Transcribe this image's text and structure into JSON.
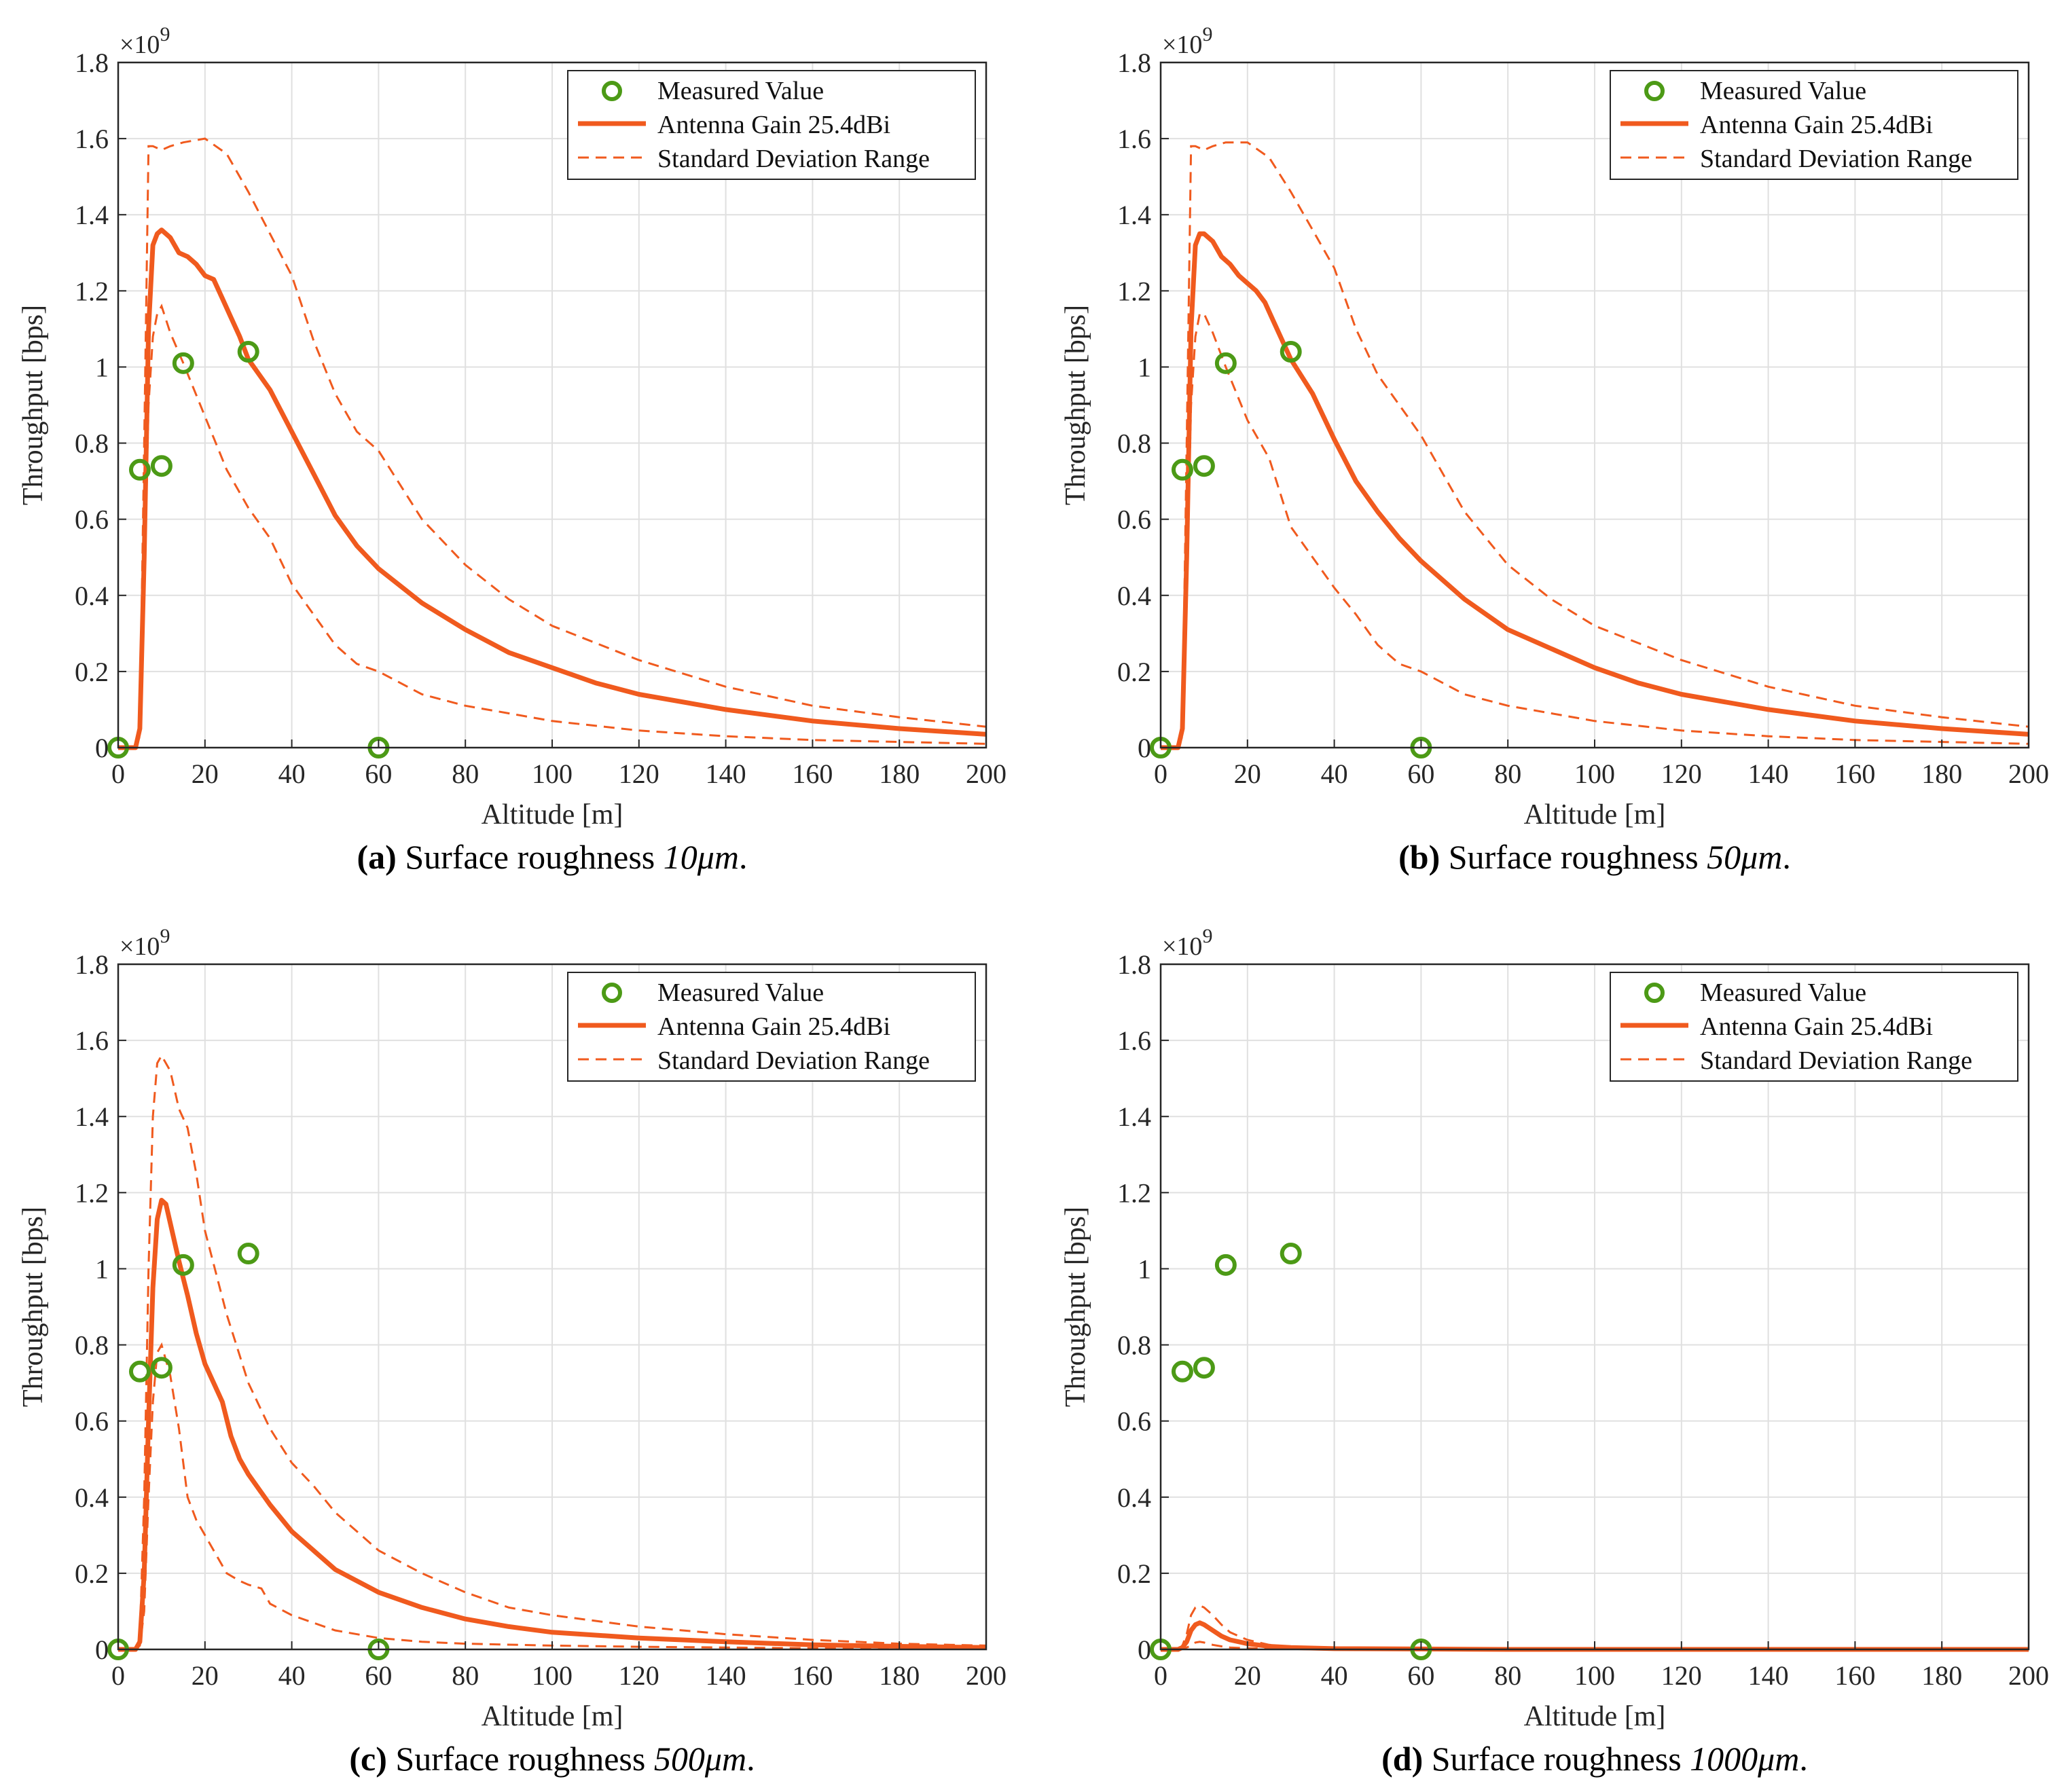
{
  "colors": {
    "curve": "#f05a1e",
    "marker": "#4c9a16",
    "grid": "#e0e0e0",
    "axis": "#262626"
  },
  "chart_data": [
    {
      "type": "line",
      "caption_tag": "(a)",
      "caption_text": "Surface roughness",
      "caption_math": "10μm",
      "caption_end": ".",
      "xlabel": "Altitude [m]",
      "ylabel": "Throughput [bps]",
      "exponent": "×10",
      "exponent_power": "9",
      "xlim": [
        0,
        200
      ],
      "ylim": [
        0,
        1.8
      ],
      "xticks": [
        0,
        20,
        40,
        60,
        80,
        100,
        120,
        140,
        160,
        180,
        200
      ],
      "yticks": [
        0,
        0.2,
        0.4,
        0.6,
        0.8,
        1,
        1.2,
        1.4,
        1.6,
        1.8
      ],
      "ytick_labels": [
        "0",
        "0.2",
        "0.4",
        "0.6",
        "0.8",
        "1",
        "1.2",
        "1.4",
        "1.6",
        "1.8"
      ],
      "grid": true,
      "legend_position": "top-right",
      "legend": [
        "Measured Value",
        "Antenna Gain 25.4dBi",
        "Standard Deviation Range"
      ],
      "measured": {
        "name": "Measured Value",
        "x": [
          0,
          5,
          10,
          15,
          30,
          60
        ],
        "y": [
          0,
          0.73,
          0.74,
          1.01,
          1.04,
          0
        ]
      },
      "mean": {
        "name": "Antenna Gain 25.4dBi",
        "x": [
          0,
          4,
          5,
          6,
          7,
          8,
          9,
          10,
          12,
          14,
          16,
          18,
          20,
          22,
          24,
          26,
          28,
          30,
          35,
          40,
          45,
          50,
          55,
          60,
          70,
          80,
          90,
          100,
          110,
          120,
          140,
          160,
          180,
          200
        ],
        "y": [
          0,
          0,
          0.05,
          0.5,
          1.1,
          1.32,
          1.35,
          1.36,
          1.34,
          1.3,
          1.29,
          1.27,
          1.24,
          1.23,
          1.18,
          1.13,
          1.08,
          1.02,
          0.94,
          0.83,
          0.72,
          0.61,
          0.53,
          0.47,
          0.38,
          0.31,
          0.25,
          0.21,
          0.17,
          0.14,
          0.1,
          0.07,
          0.05,
          0.035
        ]
      },
      "upper": {
        "name": "Standard Deviation Range",
        "x": [
          0,
          4,
          5,
          6,
          7,
          8,
          10,
          12,
          15,
          20,
          25,
          30,
          35,
          40,
          45,
          50,
          55,
          60,
          70,
          80,
          90,
          100,
          120,
          140,
          160,
          180,
          200
        ],
        "y": [
          0,
          0,
          0.05,
          0.8,
          1.58,
          1.58,
          1.57,
          1.58,
          1.59,
          1.6,
          1.56,
          1.46,
          1.35,
          1.24,
          1.07,
          0.93,
          0.83,
          0.78,
          0.6,
          0.48,
          0.39,
          0.32,
          0.23,
          0.16,
          0.11,
          0.08,
          0.055
        ]
      },
      "lower": {
        "name": "Standard Deviation Range",
        "x": [
          0,
          4,
          5,
          6,
          7,
          8,
          9,
          10,
          12,
          15,
          20,
          25,
          30,
          35,
          40,
          45,
          50,
          55,
          60,
          70,
          80,
          90,
          100,
          120,
          140,
          160,
          180,
          200
        ],
        "y": [
          0,
          0,
          0.03,
          0.4,
          0.9,
          1.08,
          1.14,
          1.16,
          1.09,
          1.01,
          0.87,
          0.73,
          0.63,
          0.55,
          0.43,
          0.35,
          0.27,
          0.22,
          0.2,
          0.14,
          0.11,
          0.09,
          0.07,
          0.045,
          0.03,
          0.02,
          0.015,
          0.01
        ]
      }
    },
    {
      "type": "line",
      "caption_tag": "(b)",
      "caption_text": "Surface roughness",
      "caption_math": "50μm",
      "caption_end": ".",
      "xlabel": "Altitude [m]",
      "ylabel": "Throughput [bps]",
      "exponent": "×10",
      "exponent_power": "9",
      "xlim": [
        0,
        200
      ],
      "ylim": [
        0,
        1.8
      ],
      "xticks": [
        0,
        20,
        40,
        60,
        80,
        100,
        120,
        140,
        160,
        180,
        200
      ],
      "yticks": [
        0,
        0.2,
        0.4,
        0.6,
        0.8,
        1,
        1.2,
        1.4,
        1.6,
        1.8
      ],
      "ytick_labels": [
        "0",
        "0.2",
        "0.4",
        "0.6",
        "0.8",
        "1",
        "1.2",
        "1.4",
        "1.6",
        "1.8"
      ],
      "grid": true,
      "legend_position": "top-right",
      "legend": [
        "Measured Value",
        "Antenna Gain 25.4dBi",
        "Standard Deviation Range"
      ],
      "measured": {
        "name": "Measured Value",
        "x": [
          0,
          5,
          10,
          15,
          30,
          60
        ],
        "y": [
          0,
          0.73,
          0.74,
          1.01,
          1.04,
          0
        ]
      },
      "mean": {
        "name": "Antenna Gain 25.4dBi",
        "x": [
          0,
          4,
          5,
          6,
          7,
          8,
          9,
          10,
          12,
          14,
          16,
          18,
          20,
          22,
          24,
          26,
          28,
          30,
          35,
          40,
          45,
          50,
          55,
          60,
          70,
          80,
          90,
          100,
          110,
          120,
          140,
          160,
          180,
          200
        ],
        "y": [
          0,
          0,
          0.05,
          0.5,
          1.1,
          1.32,
          1.35,
          1.35,
          1.33,
          1.29,
          1.27,
          1.24,
          1.22,
          1.2,
          1.17,
          1.12,
          1.07,
          1.02,
          0.93,
          0.81,
          0.7,
          0.62,
          0.55,
          0.49,
          0.39,
          0.31,
          0.26,
          0.21,
          0.17,
          0.14,
          0.1,
          0.07,
          0.05,
          0.035
        ]
      },
      "upper": {
        "name": "Standard Deviation Range",
        "x": [
          0,
          4,
          5,
          6,
          7,
          8,
          10,
          12,
          15,
          20,
          25,
          30,
          35,
          40,
          45,
          50,
          55,
          60,
          70,
          80,
          90,
          100,
          120,
          140,
          160,
          180,
          200
        ],
        "y": [
          0,
          0,
          0.05,
          0.8,
          1.58,
          1.58,
          1.57,
          1.58,
          1.59,
          1.59,
          1.55,
          1.46,
          1.36,
          1.26,
          1.1,
          0.98,
          0.9,
          0.82,
          0.62,
          0.48,
          0.39,
          0.32,
          0.23,
          0.16,
          0.11,
          0.08,
          0.055
        ]
      },
      "lower": {
        "name": "Standard Deviation Range",
        "x": [
          0,
          4,
          5,
          6,
          7,
          8,
          9,
          10,
          12,
          15,
          20,
          25,
          30,
          35,
          40,
          45,
          50,
          55,
          60,
          70,
          80,
          90,
          100,
          120,
          140,
          160,
          180,
          200
        ],
        "y": [
          0,
          0,
          0.03,
          0.4,
          0.9,
          1.08,
          1.14,
          1.14,
          1.09,
          1.0,
          0.86,
          0.76,
          0.58,
          0.5,
          0.42,
          0.35,
          0.27,
          0.22,
          0.2,
          0.14,
          0.11,
          0.09,
          0.07,
          0.045,
          0.03,
          0.02,
          0.015,
          0.01
        ]
      }
    },
    {
      "type": "line",
      "caption_tag": "(c)",
      "caption_text": "Surface roughness",
      "caption_math": "500μm",
      "caption_end": ".",
      "xlabel": "Altitude [m]",
      "ylabel": "Throughput [bps]",
      "exponent": "×10",
      "exponent_power": "9",
      "xlim": [
        0,
        200
      ],
      "ylim": [
        0,
        1.8
      ],
      "xticks": [
        0,
        20,
        40,
        60,
        80,
        100,
        120,
        140,
        160,
        180,
        200
      ],
      "yticks": [
        0,
        0.2,
        0.4,
        0.6,
        0.8,
        1,
        1.2,
        1.4,
        1.6,
        1.8
      ],
      "ytick_labels": [
        "0",
        "0.2",
        "0.4",
        "0.6",
        "0.8",
        "1",
        "1.2",
        "1.4",
        "1.6",
        "1.8"
      ],
      "grid": true,
      "legend_position": "top-right",
      "legend": [
        "Measured Value",
        "Antenna Gain 25.4dBi",
        "Standard Deviation Range"
      ],
      "measured": {
        "name": "Measured Value",
        "x": [
          0,
          5,
          10,
          15,
          30,
          60
        ],
        "y": [
          0,
          0.73,
          0.74,
          1.01,
          1.04,
          0
        ]
      },
      "mean": {
        "name": "Antenna Gain 25.4dBi",
        "x": [
          0,
          4,
          5,
          6,
          7,
          8,
          9,
          10,
          11,
          12,
          14,
          16,
          18,
          20,
          22,
          24,
          26,
          28,
          30,
          35,
          40,
          45,
          50,
          60,
          70,
          80,
          90,
          100,
          120,
          140,
          160,
          180,
          200
        ],
        "y": [
          0,
          0,
          0.02,
          0.2,
          0.6,
          0.95,
          1.13,
          1.18,
          1.17,
          1.12,
          1.02,
          0.93,
          0.83,
          0.75,
          0.7,
          0.65,
          0.56,
          0.5,
          0.46,
          0.38,
          0.31,
          0.26,
          0.21,
          0.15,
          0.11,
          0.08,
          0.06,
          0.045,
          0.03,
          0.02,
          0.012,
          0.008,
          0.005
        ]
      },
      "upper": {
        "name": "Standard Deviation Range",
        "x": [
          0,
          4,
          5,
          6,
          7,
          8,
          9,
          10,
          12,
          14,
          16,
          18,
          20,
          25,
          30,
          35,
          40,
          45,
          50,
          60,
          70,
          80,
          90,
          100,
          120,
          140,
          160,
          180,
          200
        ],
        "y": [
          0,
          0,
          0.03,
          0.4,
          1.0,
          1.4,
          1.54,
          1.56,
          1.52,
          1.42,
          1.37,
          1.25,
          1.1,
          0.88,
          0.7,
          0.58,
          0.49,
          0.43,
          0.36,
          0.26,
          0.2,
          0.15,
          0.11,
          0.09,
          0.06,
          0.04,
          0.025,
          0.015,
          0.01
        ]
      },
      "lower": {
        "name": "Standard Deviation Range",
        "x": [
          0,
          4,
          5,
          6,
          7,
          8,
          9,
          10,
          12,
          14,
          16,
          18,
          20,
          22,
          25,
          28,
          30,
          33,
          35,
          40,
          50,
          60,
          70,
          80,
          100,
          120,
          140,
          160,
          200
        ],
        "y": [
          0,
          0,
          0.01,
          0.1,
          0.4,
          0.65,
          0.78,
          0.8,
          0.72,
          0.58,
          0.4,
          0.34,
          0.3,
          0.26,
          0.2,
          0.18,
          0.17,
          0.16,
          0.12,
          0.09,
          0.05,
          0.03,
          0.02,
          0.015,
          0.01,
          0.007,
          0.005,
          0.003,
          0.002
        ]
      }
    },
    {
      "type": "line",
      "caption_tag": "(d)",
      "caption_text": "Surface roughness",
      "caption_math": "1000μm",
      "caption_end": ".",
      "xlabel": "Altitude [m]",
      "ylabel": "Throughput [bps]",
      "exponent": "×10",
      "exponent_power": "9",
      "xlim": [
        0,
        200
      ],
      "ylim": [
        0,
        1.8
      ],
      "xticks": [
        0,
        20,
        40,
        60,
        80,
        100,
        120,
        140,
        160,
        180,
        200
      ],
      "yticks": [
        0,
        0.2,
        0.4,
        0.6,
        0.8,
        1,
        1.2,
        1.4,
        1.6,
        1.8
      ],
      "ytick_labels": [
        "0",
        "0.2",
        "0.4",
        "0.6",
        "0.8",
        "1",
        "1.2",
        "1.4",
        "1.6",
        "1.8"
      ],
      "grid": true,
      "legend_position": "top-right",
      "legend": [
        "Measured Value",
        "Antenna Gain 25.4dBi",
        "Standard Deviation Range"
      ],
      "measured": {
        "name": "Measured Value",
        "x": [
          0,
          5,
          10,
          15,
          30,
          60
        ],
        "y": [
          0,
          0.73,
          0.74,
          1.01,
          1.04,
          0
        ]
      },
      "mean": {
        "name": "Antenna Gain 25.4dBi",
        "x": [
          0,
          4,
          5,
          6,
          7,
          8,
          9,
          10,
          12,
          14,
          16,
          20,
          25,
          30,
          40,
          60,
          80,
          200
        ],
        "y": [
          0,
          0,
          0.005,
          0.02,
          0.05,
          0.065,
          0.07,
          0.065,
          0.05,
          0.035,
          0.025,
          0.015,
          0.008,
          0.005,
          0.002,
          0.001,
          0,
          0
        ]
      },
      "upper": {
        "name": "Standard Deviation Range",
        "x": [
          0,
          4,
          5,
          6,
          7,
          8,
          9,
          10,
          12,
          14,
          16,
          20,
          25,
          30,
          40,
          60,
          80,
          200
        ],
        "y": [
          0,
          0,
          0.01,
          0.04,
          0.09,
          0.11,
          0.115,
          0.11,
          0.09,
          0.065,
          0.045,
          0.025,
          0.012,
          0.007,
          0.003,
          0.001,
          0,
          0
        ]
      },
      "lower": {
        "name": "Standard Deviation Range",
        "x": [
          0,
          4,
          5,
          6,
          7,
          8,
          9,
          10,
          12,
          14,
          16,
          20,
          25,
          30,
          40,
          60,
          200
        ],
        "y": [
          0,
          0,
          0.002,
          0.005,
          0.01,
          0.018,
          0.02,
          0.018,
          0.012,
          0.008,
          0.005,
          0.003,
          0.002,
          0.001,
          0,
          0,
          0
        ]
      }
    }
  ]
}
